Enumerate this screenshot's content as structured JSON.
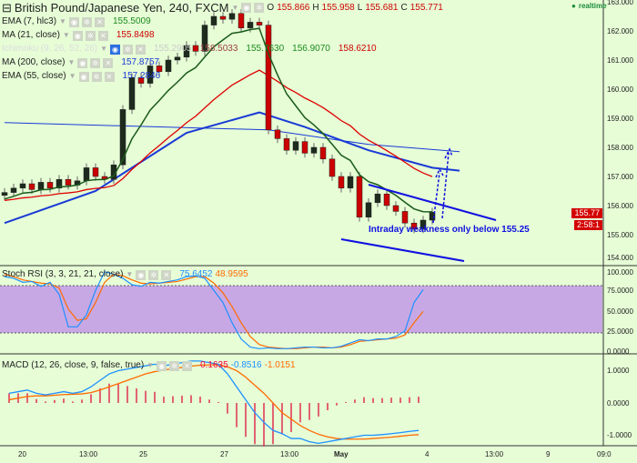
{
  "header": {
    "title": "British Pound/Japanese Yen, 240, FXCM",
    "o_label": "O",
    "o": "155.866",
    "h_label": "H",
    "h": "155.958",
    "l_label": "L",
    "l": "155.681",
    "c_label": "C",
    "c": "155.771",
    "realtime": "realtime"
  },
  "indicators": [
    {
      "name": "EMA (7, hlc3)",
      "values": [
        "155.5009"
      ],
      "colors": [
        "#1f8a1f"
      ]
    },
    {
      "name": "MA (21, close)",
      "values": [
        "155.8498"
      ],
      "colors": [
        "#d00000"
      ]
    },
    {
      "name": "Ichimoku (9, 26, 52, 26)",
      "values": [
        "155.2905",
        "158.5033",
        "155.7630",
        "156.9070",
        "158.6210"
      ],
      "colors": [
        "#cccccc",
        "#a04040",
        "#1f8a1f",
        "#1f8a1f",
        "#d00000"
      ]
    },
    {
      "name": "MA (200, close)",
      "values": [
        "157.8757"
      ],
      "colors": [
        "#1a3ad6"
      ]
    },
    {
      "name": "EMA (55, close)",
      "values": [
        "157.2846"
      ],
      "colors": [
        "#1a3ad6"
      ]
    }
  ],
  "stoch": {
    "name": "Stoch RSI (3, 3, 21, 21, close)",
    "k": "75.6452",
    "d": "48.9595",
    "k_series": [
      92,
      90,
      85,
      86,
      80,
      85,
      70,
      30,
      30,
      45,
      75,
      98,
      95,
      90,
      82,
      80,
      85,
      84,
      86,
      88,
      92,
      93,
      90,
      75,
      60,
      35,
      15,
      5,
      3,
      4,
      3,
      3,
      4,
      5,
      5,
      4,
      4,
      6,
      10,
      14,
      13,
      15,
      15,
      18,
      25,
      60,
      76
    ],
    "d_series": [
      95,
      92,
      88,
      86,
      84,
      83,
      78,
      52,
      38,
      40,
      60,
      85,
      95,
      93,
      88,
      84,
      83,
      84,
      85,
      86,
      89,
      92,
      92,
      84,
      72,
      55,
      35,
      18,
      8,
      5,
      4,
      3,
      3,
      4,
      5,
      5,
      4,
      5,
      8,
      12,
      13,
      14,
      15,
      16,
      20,
      35,
      49
    ],
    "ticks": [
      "100.000",
      "75.0000",
      "50.0000",
      "25.0000",
      "0.0000"
    ]
  },
  "macd": {
    "name": "MACD (12, 26, close, 9, false, true)",
    "hist_v": "0.1635",
    "macd_v": "-0.8516",
    "signal_v": "-1.0151",
    "macd_series": [
      0.3,
      0.35,
      0.4,
      0.3,
      0.25,
      0.3,
      0.35,
      0.3,
      0.35,
      0.5,
      0.7,
      0.9,
      1.0,
      1.05,
      1.1,
      1.15,
      1.2,
      1.15,
      1.2,
      1.25,
      1.3,
      1.3,
      1.25,
      1.2,
      0.9,
      0.5,
      0.1,
      -0.3,
      -0.6,
      -0.85,
      -0.95,
      -1.1,
      -1.1,
      -1.2,
      -1.25,
      -1.2,
      -1.15,
      -1.1,
      -1.05,
      -1.0,
      -1.0,
      -0.98,
      -0.95,
      -0.92,
      -0.88,
      -0.85
    ],
    "signal_series": [
      0.1,
      0.15,
      0.2,
      0.22,
      0.22,
      0.24,
      0.26,
      0.27,
      0.28,
      0.32,
      0.4,
      0.5,
      0.6,
      0.7,
      0.8,
      0.9,
      0.97,
      1.02,
      1.06,
      1.1,
      1.14,
      1.17,
      1.18,
      1.18,
      1.12,
      1.0,
      0.8,
      0.55,
      0.3,
      0.0,
      -0.3,
      -0.5,
      -0.7,
      -0.85,
      -0.97,
      -1.05,
      -1.1,
      -1.12,
      -1.12,
      -1.12,
      -1.1,
      -1.08,
      -1.06,
      -1.03,
      -1.0,
      -0.98
    ],
    "ticks": [
      "1.0000",
      "0.0000",
      "-1.0000"
    ]
  },
  "price_axis": [
    "163.000",
    "162.000",
    "161.000",
    "160.000",
    "159.000",
    "158.000",
    "157.000",
    "156.000",
    "155.000",
    "154.000"
  ],
  "last_price": "155.77",
  "countdown": "2:58:1",
  "annotation": "Intraday weakness only below 155.25",
  "x_axis": [
    "20",
    "13:00",
    "25",
    "27",
    "13:00",
    "May",
    "4",
    "13:00",
    "9",
    "09:0"
  ],
  "chart_data": {
    "type": "candlestick",
    "closes": [
      156.45,
      156.6,
      156.75,
      156.55,
      156.8,
      156.6,
      156.9,
      156.7,
      156.85,
      157.3,
      157.0,
      156.9,
      157.4,
      159.3,
      160.4,
      160.2,
      160.8,
      160.6,
      161.0,
      161.1,
      161.5,
      161.3,
      162.2,
      162.5,
      162.4,
      162.6,
      162.1,
      162.3,
      162.2,
      158.6,
      158.3,
      157.9,
      158.2,
      157.8,
      158.0,
      157.6,
      157.0,
      156.6,
      157.0,
      155.6,
      156.1,
      156.4,
      156.0,
      155.8,
      155.4,
      155.2,
      155.5,
      155.77
    ],
    "ma200": [
      [
        0,
        158.85
      ],
      [
        29,
        158.6
      ],
      [
        40,
        158.1
      ],
      [
        50,
        157.85
      ]
    ],
    "ema55": [
      [
        0,
        155.4
      ],
      [
        10,
        156.5
      ],
      [
        15,
        157.5
      ],
      [
        20,
        158.5
      ],
      [
        28,
        159.2
      ],
      [
        33,
        158.7
      ],
      [
        40,
        157.9
      ],
      [
        47,
        157.3
      ],
      [
        50,
        157.2
      ]
    ],
    "ylim": [
      154,
      163
    ]
  }
}
